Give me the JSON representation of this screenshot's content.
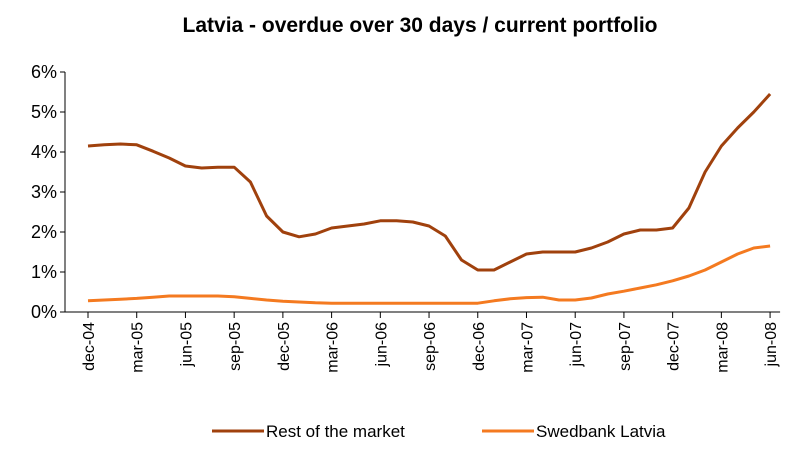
{
  "chart_data": {
    "type": "line",
    "title": "Latvia - overdue over 30 days / current portfolio",
    "categories": [
      "dec-04",
      null,
      null,
      "mar-05",
      null,
      null,
      "jun-05",
      null,
      null,
      "sep-05",
      null,
      null,
      "dec-05",
      null,
      null,
      "mar-06",
      null,
      null,
      "jun-06",
      null,
      null,
      "sep-06",
      null,
      null,
      "dec-06",
      null,
      null,
      "mar-07",
      null,
      null,
      "jun-07",
      null,
      null,
      "sep-07",
      null,
      null,
      "dec-07",
      null,
      null,
      "mar-08",
      null,
      null,
      "jun-08"
    ],
    "series": [
      {
        "name": "Rest of the market",
        "color": "#a0410d",
        "values": [
          4.15,
          4.18,
          4.2,
          4.18,
          4.02,
          3.85,
          3.65,
          3.6,
          3.62,
          3.62,
          3.25,
          2.4,
          2.0,
          1.88,
          1.95,
          2.1,
          2.15,
          2.2,
          2.28,
          2.28,
          2.25,
          2.15,
          1.9,
          1.3,
          1.05,
          1.05,
          1.25,
          1.45,
          1.5,
          1.5,
          1.5,
          1.6,
          1.75,
          1.95,
          2.05,
          2.05,
          2.1,
          2.6,
          3.5,
          4.15,
          4.6,
          5.0,
          5.45
        ]
      },
      {
        "name": "Swedbank Latvia",
        "color": "#f47a20",
        "values": [
          0.28,
          0.3,
          0.32,
          0.34,
          0.37,
          0.4,
          0.4,
          0.4,
          0.4,
          0.38,
          0.34,
          0.3,
          0.27,
          0.25,
          0.23,
          0.22,
          0.22,
          0.22,
          0.22,
          0.22,
          0.22,
          0.22,
          0.22,
          0.22,
          0.22,
          0.28,
          0.33,
          0.36,
          0.37,
          0.3,
          0.3,
          0.35,
          0.45,
          0.52,
          0.6,
          0.68,
          0.78,
          0.9,
          1.05,
          1.25,
          1.45,
          1.6,
          1.65
        ]
      }
    ],
    "ylim": [
      0,
      6
    ],
    "yticks": [
      {
        "value": 0,
        "label": "0%"
      },
      {
        "value": 1,
        "label": "1%"
      },
      {
        "value": 2,
        "label": "2%"
      },
      {
        "value": 3,
        "label": "3%"
      },
      {
        "value": 4,
        "label": "4%"
      },
      {
        "value": 5,
        "label": "5%"
      },
      {
        "value": 6,
        "label": "6%"
      }
    ],
    "legend": "bottom"
  }
}
